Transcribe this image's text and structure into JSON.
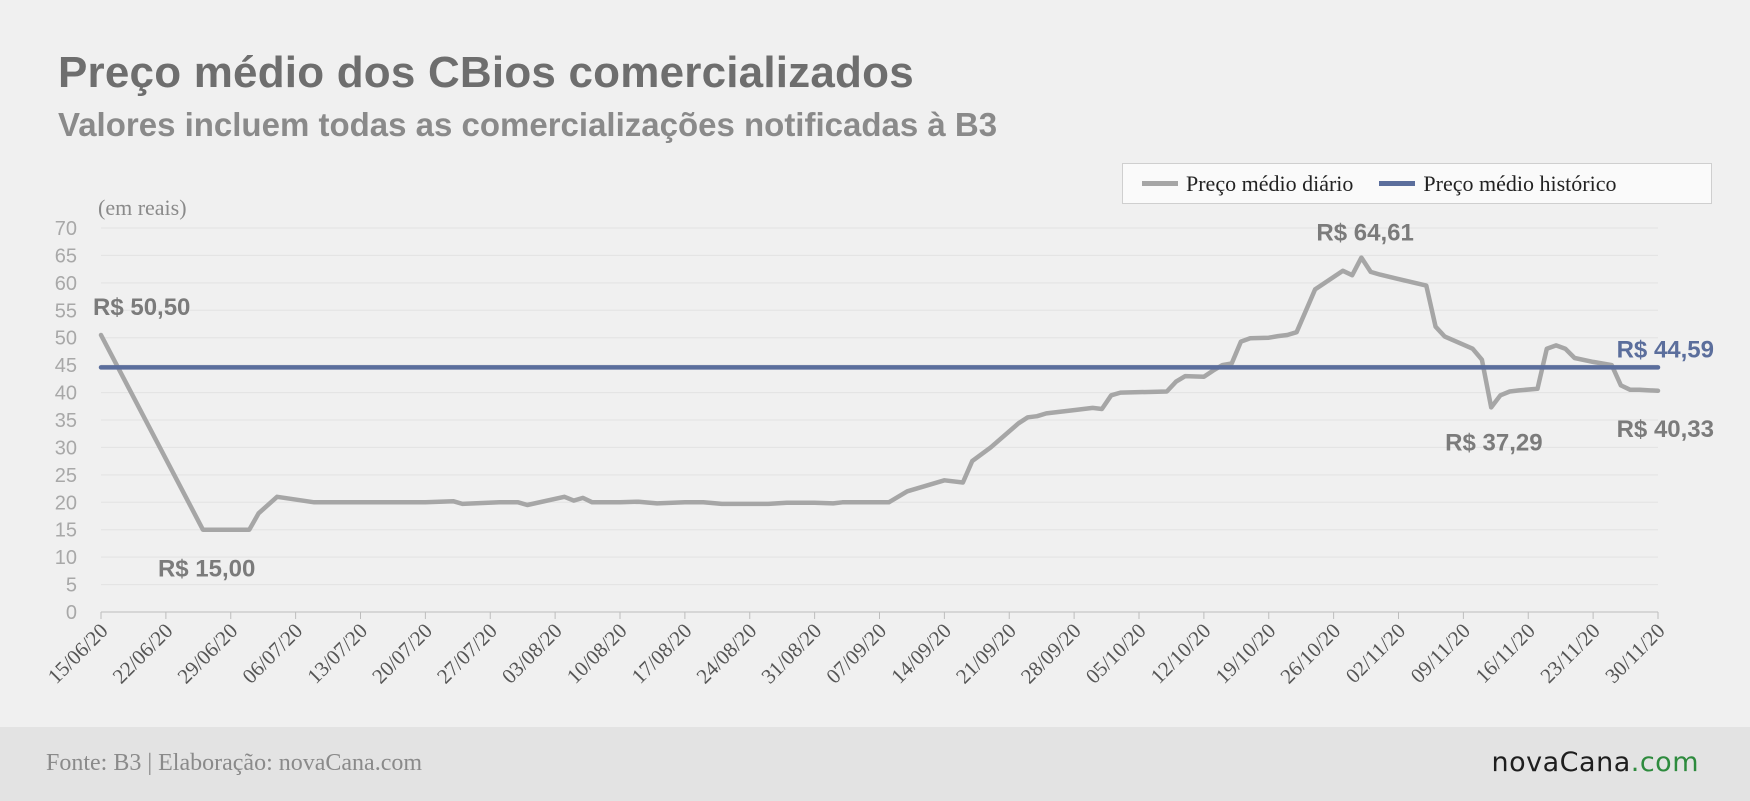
{
  "title": "Preço médio dos CBios comercializados",
  "subtitle": "Valores incluem todas as comercializações notificadas à B3",
  "legend": {
    "daily": "Preço médio diário",
    "historic": "Preço médio histórico"
  },
  "footer": {
    "source": "Fonte: B3 | Elaboração: novaCana.com",
    "logo_main": "novaCana",
    "logo_suffix": ".com"
  },
  "colors": {
    "daily": "#a6a6a6",
    "historic": "#5b6e9c",
    "label": "#7b7b7b",
    "axis": "#bdbdbd",
    "grid": "#e2e2e2"
  },
  "chart_data": {
    "type": "line",
    "ylabel": "(em reais)",
    "ylim": [
      0,
      70
    ],
    "yticks": [
      0,
      5,
      10,
      15,
      20,
      25,
      30,
      35,
      40,
      45,
      50,
      55,
      60,
      65,
      70
    ],
    "xlim": [
      "2020-06-15",
      "2020-11-30"
    ],
    "xtick_labels": [
      "15/06/20",
      "22/06/20",
      "29/06/20",
      "06/07/20",
      "13/07/20",
      "20/07/20",
      "27/07/20",
      "03/08/20",
      "10/08/20",
      "17/08/20",
      "24/08/20",
      "31/08/20",
      "07/09/20",
      "14/09/20",
      "21/09/20",
      "28/09/20",
      "05/10/20",
      "12/10/20",
      "19/10/20",
      "26/10/20",
      "02/11/20",
      "09/11/20",
      "16/11/20",
      "23/11/20",
      "30/11/20"
    ],
    "grid": true,
    "legend_position": "top-right",
    "series": [
      {
        "name": "Preço médio diário",
        "x": [
          "2020-06-15",
          "2020-06-26",
          "2020-07-01",
          "2020-07-02",
          "2020-07-04",
          "2020-07-08",
          "2020-07-10",
          "2020-07-13",
          "2020-07-20",
          "2020-07-23",
          "2020-07-24",
          "2020-07-28",
          "2020-07-30",
          "2020-07-31",
          "2020-08-04",
          "2020-08-05",
          "2020-08-06",
          "2020-08-07",
          "2020-08-10",
          "2020-08-12",
          "2020-08-14",
          "2020-08-17",
          "2020-08-19",
          "2020-08-21",
          "2020-08-24",
          "2020-08-26",
          "2020-08-28",
          "2020-08-31",
          "2020-09-02",
          "2020-09-03",
          "2020-09-04",
          "2020-09-08",
          "2020-09-10",
          "2020-09-14",
          "2020-09-16",
          "2020-09-17",
          "2020-09-19",
          "2020-09-22",
          "2020-09-23",
          "2020-09-24",
          "2020-09-25",
          "2020-09-28",
          "2020-09-30",
          "2020-10-01",
          "2020-10-02",
          "2020-10-03",
          "2020-10-08",
          "2020-10-09",
          "2020-10-10",
          "2020-10-12",
          "2020-10-13",
          "2020-10-14",
          "2020-10-15",
          "2020-10-16",
          "2020-10-17",
          "2020-10-19",
          "2020-10-20",
          "2020-10-21",
          "2020-10-22",
          "2020-10-24",
          "2020-10-27",
          "2020-10-28",
          "2020-10-29",
          "2020-10-30",
          "2020-10-31",
          "2020-11-05",
          "2020-11-06",
          "2020-11-07",
          "2020-11-10",
          "2020-11-11",
          "2020-11-12",
          "2020-11-13",
          "2020-11-14",
          "2020-11-15",
          "2020-11-17",
          "2020-11-18",
          "2020-11-19",
          "2020-11-20",
          "2020-11-21",
          "2020-11-23",
          "2020-11-25",
          "2020-11-26",
          "2020-11-27",
          "2020-11-28",
          "2020-11-30"
        ],
        "values": [
          50.5,
          15.0,
          15.0,
          18.0,
          21.0,
          20.0,
          20.0,
          20.0,
          20.0,
          20.2,
          19.7,
          20.0,
          20.0,
          19.5,
          21.0,
          20.3,
          20.8,
          20.0,
          20.0,
          20.1,
          19.8,
          20.0,
          20.0,
          19.7,
          19.7,
          19.7,
          19.9,
          19.9,
          19.8,
          20.0,
          20.0,
          20.0,
          22.0,
          24.0,
          23.6,
          27.5,
          30.0,
          34.4,
          35.5,
          35.7,
          36.2,
          36.8,
          37.2,
          37.0,
          39.5,
          40.0,
          40.2,
          42.0,
          43.0,
          42.9,
          44.0,
          45.0,
          45.3,
          49.3,
          49.9,
          50.0,
          50.3,
          50.5,
          51.0,
          58.8,
          62.2,
          61.4,
          64.61,
          62.0,
          61.5,
          59.5,
          52.0,
          50.2,
          48.0,
          46.0,
          37.29,
          39.5,
          40.2,
          40.4,
          40.7,
          48.0,
          48.6,
          48.0,
          46.3,
          45.6,
          45.0,
          41.3,
          40.5,
          40.5,
          40.33
        ]
      },
      {
        "name": "Preço médio histórico",
        "x": [
          "2020-06-15",
          "2020-11-30"
        ],
        "values": [
          44.59,
          44.59
        ]
      }
    ],
    "annotations": [
      {
        "text": "R$ 50,50",
        "x": "2020-06-15",
        "y": 50.5
      },
      {
        "text": "R$ 15,00",
        "x": "2020-06-26",
        "y": 15.0
      },
      {
        "text": "R$ 64,61",
        "x": "2020-10-29",
        "y": 64.61
      },
      {
        "text": "R$ 37,29",
        "x": "2020-11-12",
        "y": 37.29
      },
      {
        "text": "R$ 44,59",
        "x": "2020-11-30",
        "y": 44.59
      },
      {
        "text": "R$ 40,33",
        "x": "2020-11-30",
        "y": 40.33
      }
    ]
  }
}
